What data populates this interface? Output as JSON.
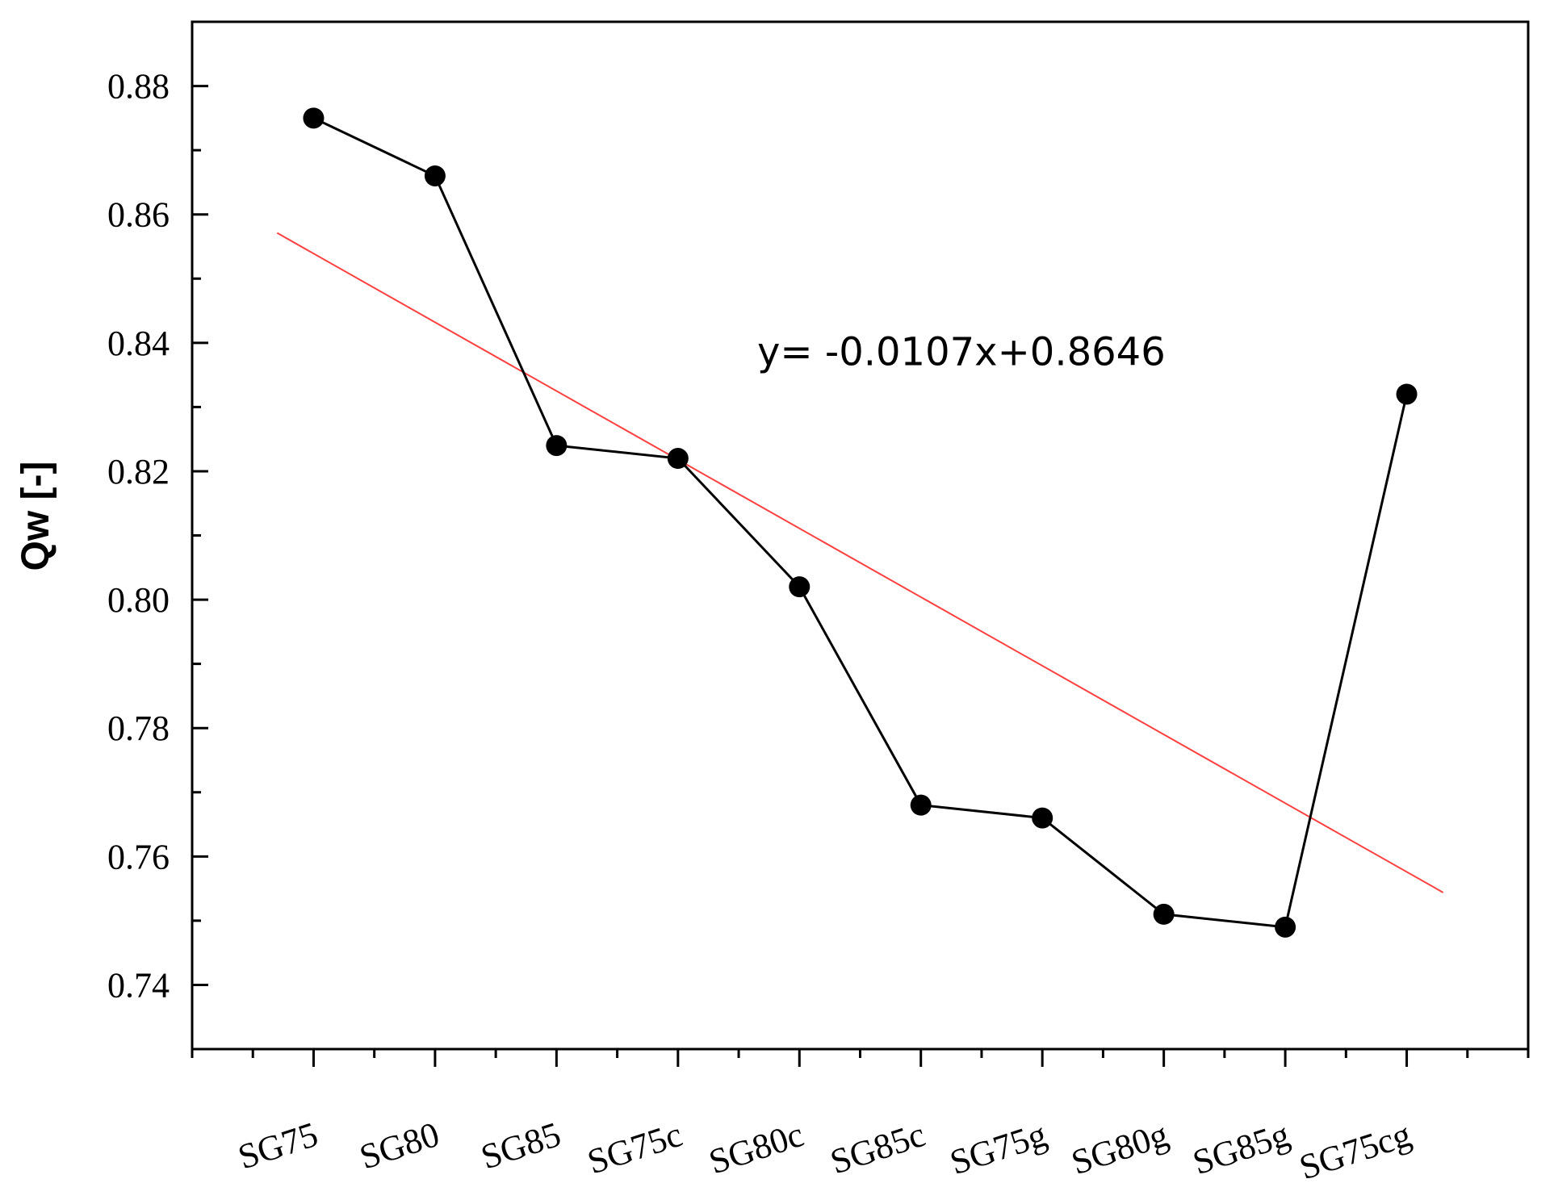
{
  "chart_data": {
    "type": "line",
    "title": "",
    "xlabel": "",
    "ylabel": "Qw [-]",
    "categories": [
      "SG75",
      "SG80",
      "SG85",
      "SG75c",
      "SG80c",
      "SG85c",
      "SG75g",
      "SG80g",
      "SG85g",
      "SG75cg"
    ],
    "series": [
      {
        "values": [
          0.875,
          0.866,
          0.824,
          0.822,
          0.802,
          0.768,
          0.766,
          0.751,
          0.749,
          0.832
        ],
        "color": "#000000",
        "marker": "circle"
      }
    ],
    "trendline": {
      "slope": -0.0107,
      "intercept": 0.8646,
      "color": "#ff4040",
      "x_start": 0.7,
      "x_end": 10.3,
      "equation_label": "y= -0.0107x+0.8646"
    },
    "ylim": [
      0.73,
      0.89
    ],
    "yticks": [
      0.74,
      0.76,
      0.78,
      0.8,
      0.82,
      0.84,
      0.86,
      0.88
    ],
    "ytick_labels": [
      "0.74",
      "0.76",
      "0.78",
      "0.80",
      "0.82",
      "0.84",
      "0.86",
      "0.88"
    ],
    "xlim": [
      0,
      11
    ],
    "grid": false,
    "legend": "none"
  }
}
